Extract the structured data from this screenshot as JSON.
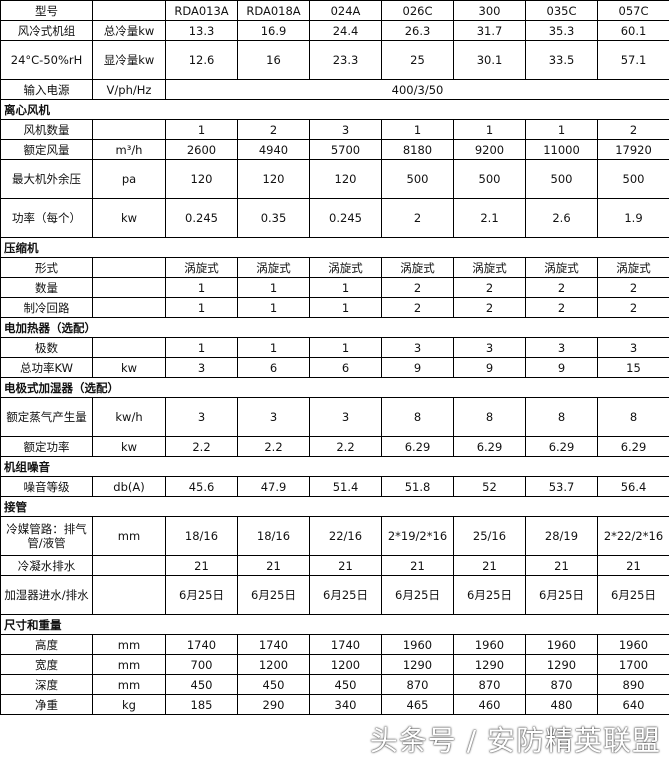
{
  "header": {
    "label": "型号",
    "unit": "",
    "models": [
      "RDA013A",
      "RDA018A",
      "024A",
      "026C",
      "300",
      "035C",
      "057C"
    ]
  },
  "rows": [
    {
      "type": "row",
      "tall": false,
      "label": "风冷式机组",
      "unit": "总冷量kw",
      "values": [
        "13.3",
        "16.9",
        "24.4",
        "26.3",
        "31.7",
        "35.3",
        "60.1"
      ]
    },
    {
      "type": "row",
      "tall": true,
      "label": "24°C-50%rH",
      "unit": "显冷量kw",
      "values": [
        "12.6",
        "16",
        "23.3",
        "25",
        "30.1",
        "33.5",
        "57.1"
      ]
    },
    {
      "type": "span",
      "tall": false,
      "label": "输入电源",
      "unit": "V/ph/Hz",
      "value": "400/3/50"
    },
    {
      "type": "section",
      "label": "离心风机"
    },
    {
      "type": "row",
      "tall": false,
      "label": "风机数量",
      "unit": "",
      "values": [
        "1",
        "2",
        "3",
        "1",
        "1",
        "1",
        "2"
      ]
    },
    {
      "type": "row",
      "tall": false,
      "label": "额定风量",
      "unit": "m³/h",
      "values": [
        "2600",
        "4940",
        "5700",
        "8180",
        "9200",
        "11000",
        "17920"
      ]
    },
    {
      "type": "row",
      "tall": true,
      "label": "最大机外余压",
      "unit": "pa",
      "values": [
        "120",
        "120",
        "120",
        "500",
        "500",
        "500",
        "500"
      ]
    },
    {
      "type": "row",
      "tall": true,
      "label": "功率（每个）",
      "unit": "kw",
      "values": [
        "0.245",
        "0.35",
        "0.245",
        "2",
        "2.1",
        "2.6",
        "1.9"
      ]
    },
    {
      "type": "section",
      "label": "压缩机"
    },
    {
      "type": "row",
      "tall": false,
      "label": "形式",
      "unit": "",
      "values": [
        "涡旋式",
        "涡旋式",
        "涡旋式",
        "涡旋式",
        "涡旋式",
        "涡旋式",
        "涡旋式"
      ]
    },
    {
      "type": "row",
      "tall": false,
      "label": "数量",
      "unit": "",
      "values": [
        "1",
        "1",
        "1",
        "2",
        "2",
        "2",
        "2"
      ]
    },
    {
      "type": "row",
      "tall": false,
      "label": "制冷回路",
      "unit": "",
      "values": [
        "1",
        "1",
        "1",
        "2",
        "2",
        "2",
        "2"
      ]
    },
    {
      "type": "section",
      "label": "电加热器（选配）"
    },
    {
      "type": "row",
      "tall": false,
      "label": "极数",
      "unit": "",
      "values": [
        "1",
        "1",
        "1",
        "3",
        "3",
        "3",
        "3"
      ]
    },
    {
      "type": "row",
      "tall": false,
      "label": "总功率KW",
      "unit": "kw",
      "values": [
        "3",
        "6",
        "6",
        "9",
        "9",
        "9",
        "15"
      ]
    },
    {
      "type": "section",
      "label": "电极式加湿器（选配）"
    },
    {
      "type": "row",
      "tall": true,
      "label": "额定蒸气产生量",
      "unit": "kw/h",
      "values": [
        "3",
        "3",
        "3",
        "8",
        "8",
        "8",
        "8"
      ]
    },
    {
      "type": "row",
      "tall": false,
      "label": "额定功率",
      "unit": "kw",
      "values": [
        "2.2",
        "2.2",
        "2.2",
        "6.29",
        "6.29",
        "6.29",
        "6.29"
      ]
    },
    {
      "type": "section",
      "label": "机组噪音"
    },
    {
      "type": "row",
      "tall": false,
      "label": "噪音等级",
      "unit": "db(A)",
      "values": [
        "45.6",
        "47.9",
        "51.4",
        "51.8",
        "52",
        "53.7",
        "56.4"
      ]
    },
    {
      "type": "section",
      "label": "接管"
    },
    {
      "type": "row",
      "tall": true,
      "label": "冷媒管路：排气管/液管",
      "unit": "mm",
      "values": [
        "18/16",
        "18/16",
        "22/16",
        "2*19/2*16",
        "25/16",
        "28/19",
        "2*22/2*16"
      ]
    },
    {
      "type": "row",
      "tall": false,
      "label": "冷凝水排水",
      "unit": "",
      "values": [
        "21",
        "21",
        "21",
        "21",
        "21",
        "21",
        "21"
      ]
    },
    {
      "type": "row",
      "tall": true,
      "label": "加湿器进水/排水",
      "unit": "",
      "values": [
        "6月25日",
        "6月25日",
        "6月25日",
        "6月25日",
        "6月25日",
        "6月25日",
        "6月25日"
      ]
    },
    {
      "type": "section",
      "label": "尺寸和重量"
    },
    {
      "type": "row",
      "tall": false,
      "label": "高度",
      "unit": "mm",
      "values": [
        "1740",
        "1740",
        "1740",
        "1960",
        "1960",
        "1960",
        "1960"
      ]
    },
    {
      "type": "row",
      "tall": false,
      "label": "宽度",
      "unit": "mm",
      "values": [
        "700",
        "1200",
        "1200",
        "1290",
        "1290",
        "1290",
        "1700"
      ]
    },
    {
      "type": "row",
      "tall": false,
      "label": "深度",
      "unit": "mm",
      "values": [
        "450",
        "450",
        "450",
        "870",
        "870",
        "870",
        "890"
      ]
    },
    {
      "type": "row",
      "tall": false,
      "label": "净重",
      "unit": "kg",
      "values": [
        "185",
        "290",
        "340",
        "465",
        "460",
        "480",
        "640"
      ]
    }
  ],
  "watermark": "头条号 / 安防精英联盟"
}
